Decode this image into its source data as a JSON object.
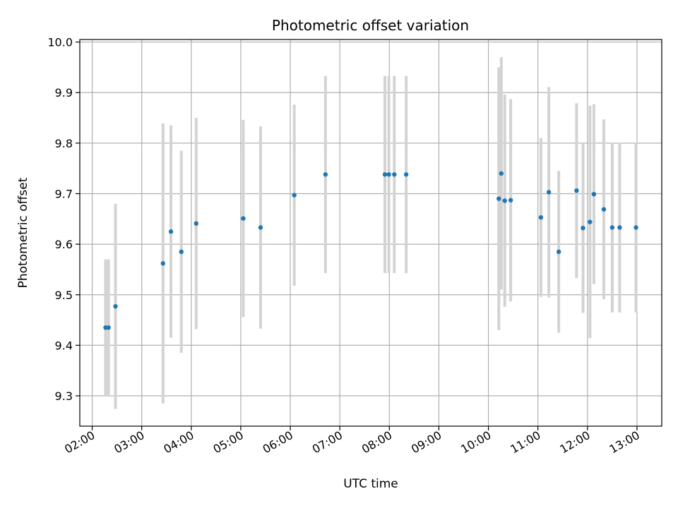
{
  "chart_data": {
    "type": "scatter",
    "title": "Photometric offset variation",
    "xlabel": "UTC time",
    "ylabel": "Photometric offset",
    "x_unit": "hours UTC",
    "xlim": [
      1.75,
      13.5
    ],
    "ylim": [
      9.24,
      10.005
    ],
    "x_ticks": [
      2,
      3,
      4,
      5,
      6,
      7,
      8,
      9,
      10,
      11,
      12,
      13
    ],
    "x_tick_labels": [
      "02:00",
      "03:00",
      "04:00",
      "05:00",
      "06:00",
      "07:00",
      "08:00",
      "09:00",
      "10:00",
      "11:00",
      "12:00",
      "13:00"
    ],
    "y_ticks": [
      9.3,
      9.4,
      9.5,
      9.6,
      9.7,
      9.8,
      9.9,
      10.0
    ],
    "y_tick_labels": [
      "9.3",
      "9.4",
      "9.5",
      "9.6",
      "9.7",
      "9.8",
      "9.9",
      "10.0"
    ],
    "grid": true,
    "colors": {
      "marker": "#1f77b4",
      "errorbar": "#d3d3d3",
      "grid": "#b0b0b0"
    },
    "points": [
      {
        "x": 2.27,
        "y": 9.435,
        "err": 0.135
      },
      {
        "x": 2.33,
        "y": 9.435,
        "err": 0.135
      },
      {
        "x": 2.47,
        "y": 9.477,
        "err": 0.203
      },
      {
        "x": 3.43,
        "y": 9.562,
        "err": 0.277
      },
      {
        "x": 3.59,
        "y": 9.625,
        "err": 0.21
      },
      {
        "x": 3.8,
        "y": 9.585,
        "err": 0.2
      },
      {
        "x": 4.1,
        "y": 9.641,
        "err": 0.209
      },
      {
        "x": 5.05,
        "y": 9.651,
        "err": 0.195
      },
      {
        "x": 5.4,
        "y": 9.633,
        "err": 0.2
      },
      {
        "x": 6.08,
        "y": 9.697,
        "err": 0.179
      },
      {
        "x": 6.71,
        "y": 9.738,
        "err": 0.195
      },
      {
        "x": 7.91,
        "y": 9.738,
        "err": 0.195
      },
      {
        "x": 7.99,
        "y": 9.738,
        "err": 0.195
      },
      {
        "x": 8.1,
        "y": 9.738,
        "err": 0.195
      },
      {
        "x": 8.34,
        "y": 9.738,
        "err": 0.195
      },
      {
        "x": 10.21,
        "y": 9.69,
        "err": 0.26
      },
      {
        "x": 10.26,
        "y": 9.74,
        "err": 0.23
      },
      {
        "x": 10.33,
        "y": 9.686,
        "err": 0.21
      },
      {
        "x": 10.45,
        "y": 9.687,
        "err": 0.2
      },
      {
        "x": 11.06,
        "y": 9.653,
        "err": 0.157
      },
      {
        "x": 11.22,
        "y": 9.703,
        "err": 0.208
      },
      {
        "x": 11.42,
        "y": 9.585,
        "err": 0.16
      },
      {
        "x": 11.78,
        "y": 9.706,
        "err": 0.173
      },
      {
        "x": 11.91,
        "y": 9.632,
        "err": 0.168
      },
      {
        "x": 12.05,
        "y": 9.644,
        "err": 0.23
      },
      {
        "x": 12.13,
        "y": 9.699,
        "err": 0.178
      },
      {
        "x": 12.33,
        "y": 9.669,
        "err": 0.178
      },
      {
        "x": 12.5,
        "y": 9.633,
        "err": 0.168
      },
      {
        "x": 12.65,
        "y": 9.633,
        "err": 0.168
      },
      {
        "x": 12.98,
        "y": 9.633,
        "err": 0.168
      }
    ]
  }
}
